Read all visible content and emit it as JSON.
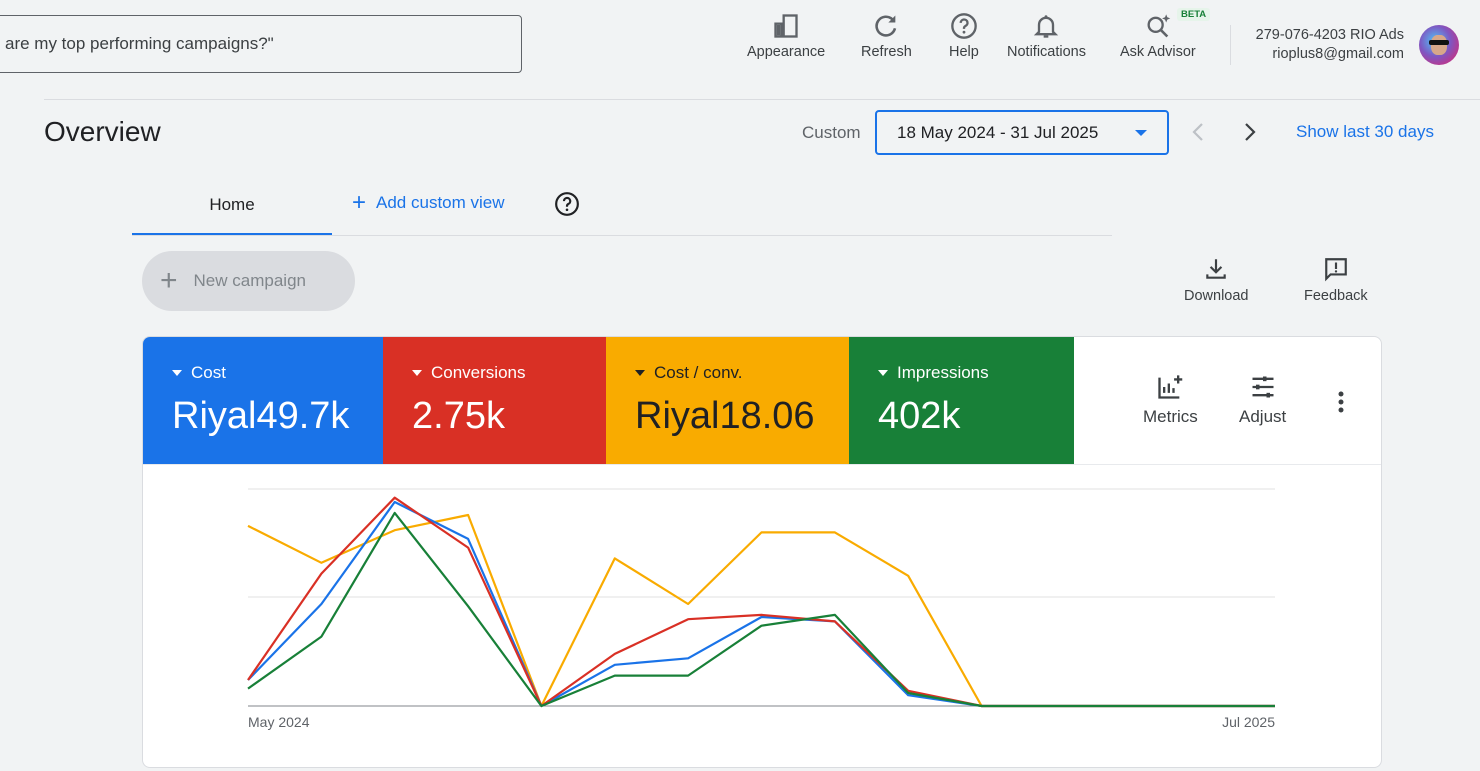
{
  "search": {
    "text": "are my top performing campaigns?\""
  },
  "topbar": {
    "appearance": "Appearance",
    "refresh": "Refresh",
    "help": "Help",
    "notifications": "Notifications",
    "ask_advisor": "Ask Advisor",
    "beta": "BETA"
  },
  "account": {
    "id_name": "279-076-4203 RIO Ads",
    "email": "rioplus8@gmail.com"
  },
  "page": {
    "title": "Overview"
  },
  "date": {
    "label": "Custom",
    "range": "18 May 2024 - 31 Jul 2025",
    "show_last": "Show last 30 days"
  },
  "tabs": {
    "home": "Home",
    "add_custom_view": "Add custom view"
  },
  "actions": {
    "new_campaign": "New campaign",
    "download": "Download",
    "feedback": "Feedback"
  },
  "metrics": [
    {
      "label": "Cost",
      "value": "Riyal49.7k",
      "color": "#1a73e8"
    },
    {
      "label": "Conversions",
      "value": "2.75k",
      "color": "#d93025"
    },
    {
      "label": "Cost / conv.",
      "value": "Riyal18.06",
      "color": "#f9ab00"
    },
    {
      "label": "Impressions",
      "value": "402k",
      "color": "#188038"
    }
  ],
  "card_buttons": {
    "metrics": "Metrics",
    "adjust": "Adjust"
  },
  "chart_data": {
    "type": "line",
    "x_start_label": "May 2024",
    "x_end_label": "Jul 2025",
    "grid": true,
    "ylim": [
      0,
      100
    ],
    "x": [
      0,
      1,
      2,
      3,
      4,
      5,
      6,
      7,
      8,
      9,
      10,
      11,
      12,
      13,
      14
    ],
    "series": [
      {
        "color": "#1a73e8",
        "values": [
          12,
          47,
          94,
          77,
          0,
          19,
          22,
          41,
          39,
          5,
          0,
          0,
          0,
          0,
          0
        ]
      },
      {
        "color": "#d93025",
        "values": [
          12,
          61,
          96,
          73,
          0,
          24,
          40,
          42,
          39,
          7,
          0,
          0,
          0,
          0,
          0
        ]
      },
      {
        "color": "#f9ab00",
        "values": [
          83,
          66,
          81,
          88,
          0,
          68,
          47,
          80,
          80,
          60,
          0,
          0,
          0,
          0,
          0
        ]
      },
      {
        "color": "#188038",
        "values": [
          8,
          32,
          89,
          46,
          0,
          14,
          14,
          37,
          42,
          6,
          0,
          0,
          0,
          0,
          0
        ]
      }
    ]
  }
}
